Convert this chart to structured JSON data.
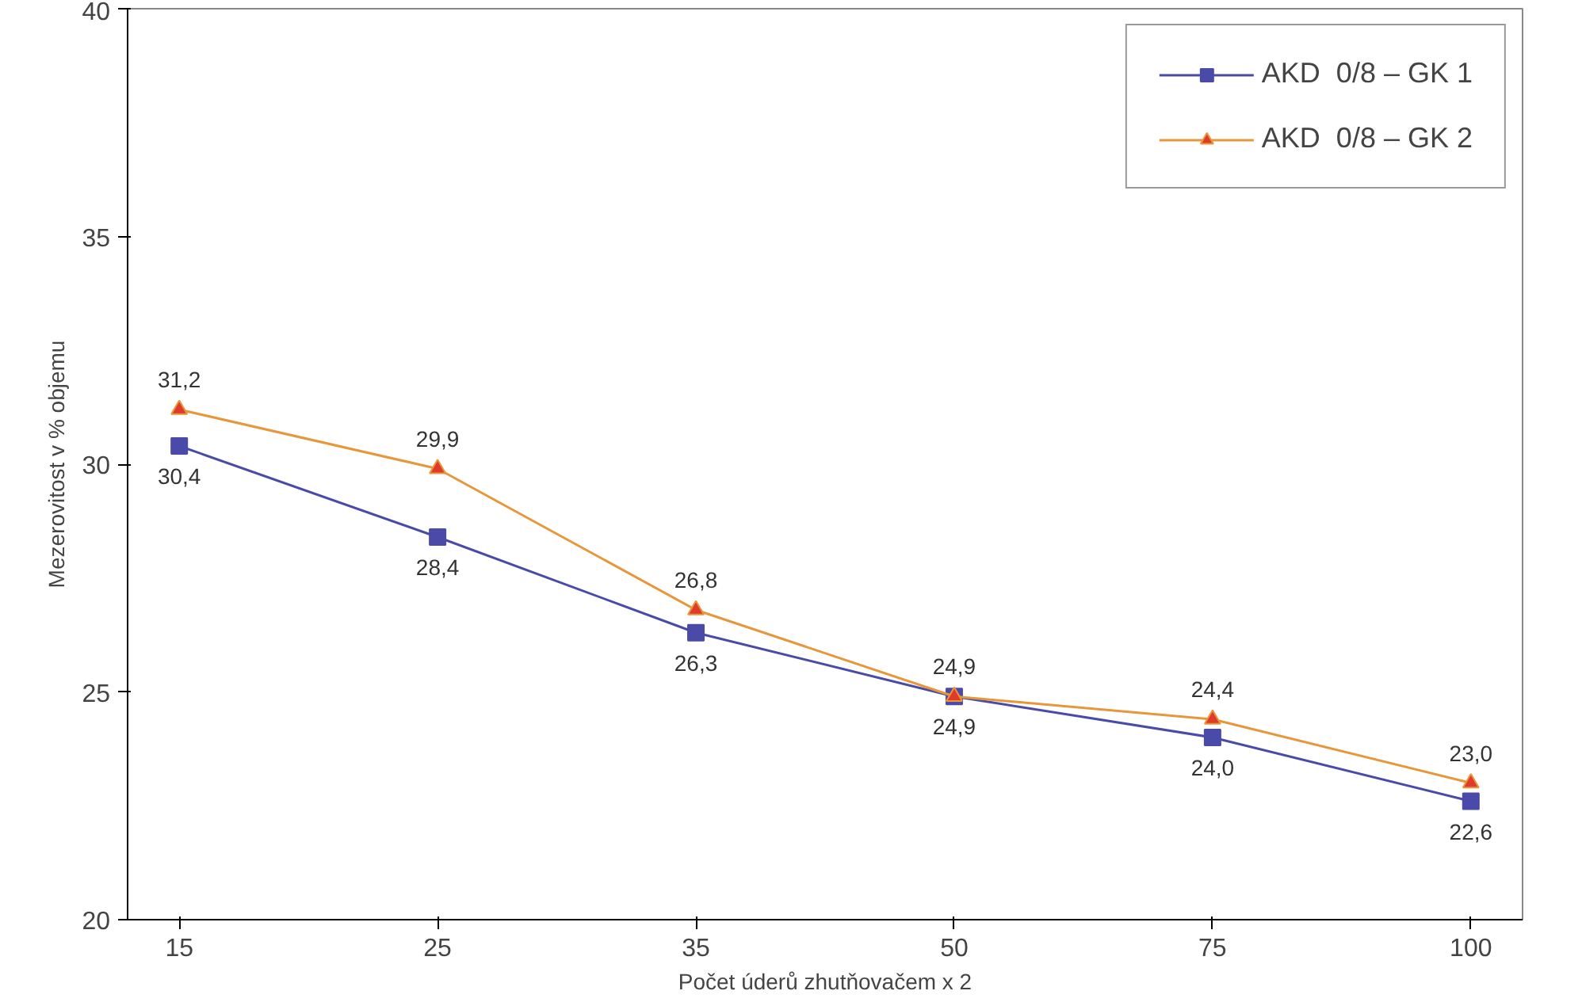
{
  "chart_data": {
    "type": "line",
    "xlabel": "Počet úderů zhutňovačem x 2",
    "ylabel": "Mezerovitost v % objemu",
    "categories": [
      "15",
      "25",
      "35",
      "50",
      "75",
      "100"
    ],
    "ylim": [
      20,
      40
    ],
    "yticks": [
      20,
      25,
      30,
      35,
      40
    ],
    "grid": false,
    "legend": "top right",
    "series": [
      {
        "name": "AKD  0/8 – GK 1",
        "color": "#4a4aa8",
        "marker": "square",
        "values": [
          30.4,
          28.4,
          26.3,
          24.9,
          24.0,
          22.6
        ],
        "value_labels": [
          "30,4",
          "28,4",
          "26,3",
          "24,9",
          "24,0",
          "22,6"
        ]
      },
      {
        "name": "AKD  0/8 – GK 2",
        "color": "#e8963a",
        "marker": "triangle",
        "values": [
          31.2,
          29.9,
          26.8,
          24.9,
          24.4,
          23.0
        ],
        "value_labels": [
          "31,2",
          "29,9",
          "26,8",
          "24,9",
          "24,4",
          "23,0"
        ]
      }
    ]
  }
}
